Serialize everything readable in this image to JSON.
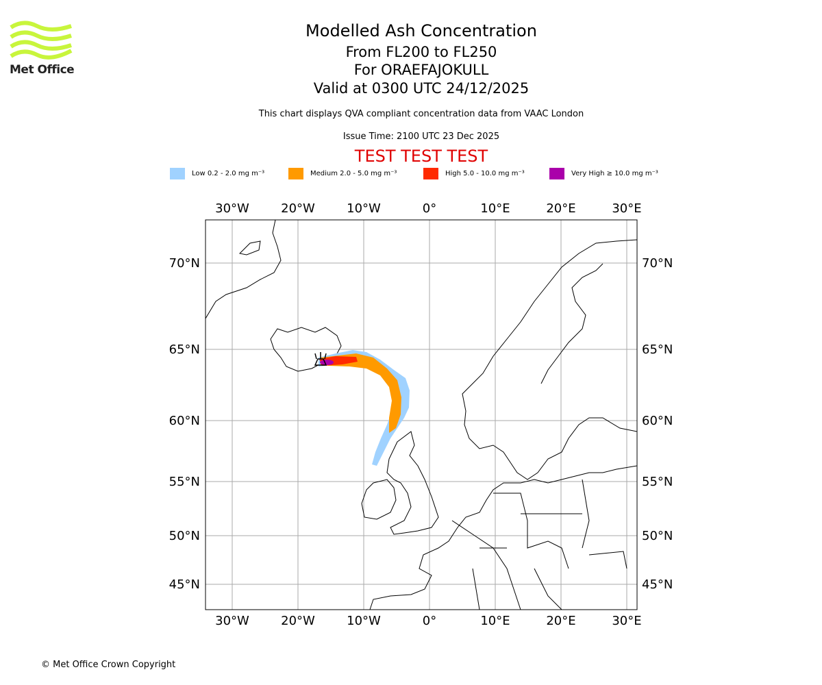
{
  "logo": {
    "text": "Met Office",
    "color": "#c8f53c"
  },
  "header": {
    "title": "Modelled Ash Concentration",
    "levels": "From FL200 to FL250",
    "volcano": "For ORAEFAJOKULL",
    "valid": "Valid at 0300 UTC 24/12/2025",
    "description": "This chart displays QVA compliant concentration data from VAAC London",
    "issue_time": "Issue Time: 2100 UTC 23 Dec 2025",
    "test_banner": "TEST TEST TEST"
  },
  "legend": [
    {
      "label": "Low 0.2 - 2.0 mg m⁻³",
      "color": "#a0d2ff"
    },
    {
      "label": "Medium 2.0 - 5.0 mg m⁻³",
      "color": "#ff9a00"
    },
    {
      "label": "High 5.0 - 10.0 mg m⁻³",
      "color": "#ff2a00"
    },
    {
      "label": "Very High ≥ 10.0 mg m⁻³",
      "color": "#aa00aa"
    }
  ],
  "map": {
    "lon_labels": [
      "30°W",
      "20°W",
      "10°W",
      "0°",
      "10°E",
      "20°E",
      "30°E"
    ],
    "lat_labels": [
      "70°N",
      "65°N",
      "60°N",
      "55°N",
      "50°N",
      "45°N"
    ]
  },
  "footer": {
    "copyright": "© Met Office Crown Copyright"
  }
}
